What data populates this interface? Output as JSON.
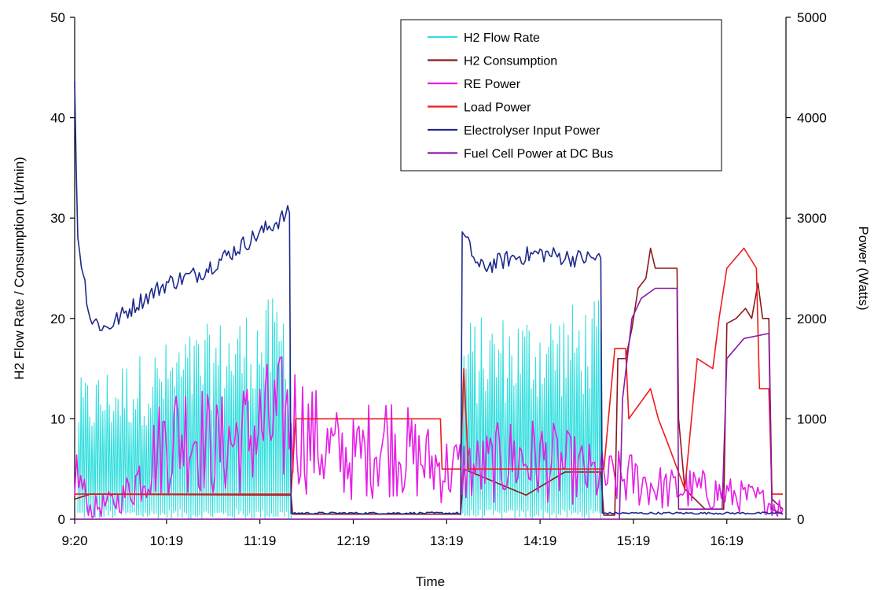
{
  "chart_data": {
    "type": "line",
    "title": "",
    "xlabel": "Time",
    "ylabel_left": "H2 Flow Rate / Consumption (Lit/min)",
    "ylabel_right": "Power (Watts)",
    "x_ticks": [
      "9:20",
      "10:19",
      "11:19",
      "12:19",
      "13:19",
      "14:19",
      "15:19",
      "16:19"
    ],
    "y_left_ticks": [
      "0",
      "10",
      "20",
      "30",
      "40",
      "50"
    ],
    "y_right_ticks": [
      "0",
      "1000",
      "2000",
      "3000",
      "4000",
      "5000"
    ],
    "y_left_range": [
      0,
      50
    ],
    "y_right_range": [
      0,
      5000
    ],
    "x_range_hours": [
      9.333,
      16.95
    ],
    "grid": false,
    "legend_position": "top-right",
    "series": [
      {
        "name": "H2 Flow Rate",
        "axis": "left",
        "color": "#33dede",
        "pattern": "oscillating",
        "segments": [
          {
            "start": "9:22",
            "end": "11:39",
            "low": 0,
            "high_start": 14,
            "high_end": 23
          },
          {
            "start": "13:28",
            "end": "14:58",
            "low": 0,
            "high_start": 20,
            "high_end": 22
          }
        ]
      },
      {
        "name": "H2 Consumption",
        "axis": "left",
        "color": "#8b1a1a",
        "points": [
          [
            "9:20",
            2
          ],
          [
            "9:30",
            2.5
          ],
          [
            "11:39",
            2.4
          ],
          [
            "11:40",
            0.5
          ],
          [
            "13:28",
            0.5
          ],
          [
            "13:30",
            5
          ],
          [
            "14:10",
            2.4
          ],
          [
            "14:35",
            4.7
          ],
          [
            "14:58",
            4.7
          ],
          [
            "15:00",
            0.4
          ],
          [
            "15:07",
            0.4
          ],
          [
            "15:09",
            16
          ],
          [
            "15:14",
            16
          ],
          [
            "15:18",
            19
          ],
          [
            "15:22",
            23
          ],
          [
            "15:27",
            24
          ],
          [
            "15:30",
            27
          ],
          [
            "15:33",
            25
          ],
          [
            "15:47",
            25
          ],
          [
            "15:48",
            10
          ],
          [
            "15:52",
            3
          ],
          [
            "16:05",
            1
          ],
          [
            "16:17",
            1
          ],
          [
            "16:19",
            19.5
          ],
          [
            "16:25",
            20
          ],
          [
            "16:31",
            21
          ],
          [
            "16:35",
            20
          ],
          [
            "16:39",
            23.5
          ],
          [
            "16:42",
            20
          ],
          [
            "16:46",
            20
          ],
          [
            "16:48",
            2
          ],
          [
            "16:55",
            1
          ]
        ]
      },
      {
        "name": "RE Power",
        "axis": "right",
        "color": "#e61ee6",
        "pattern": "noisy",
        "points": [
          [
            "9:20",
            500
          ],
          [
            "9:30",
            100
          ],
          [
            "9:50",
            200
          ],
          [
            "10:05",
            500
          ],
          [
            "10:19",
            800
          ],
          [
            "10:35",
            900
          ],
          [
            "10:50",
            700
          ],
          [
            "11:05",
            800
          ],
          [
            "11:19",
            900
          ],
          [
            "11:39",
            1000
          ],
          [
            "12:00",
            700
          ],
          [
            "12:19",
            600
          ],
          [
            "12:40",
            800
          ],
          [
            "13:00",
            600
          ],
          [
            "13:19",
            500
          ],
          [
            "13:40",
            500
          ],
          [
            "14:00",
            600
          ],
          [
            "14:19",
            600
          ],
          [
            "14:40",
            500
          ],
          [
            "15:00",
            400
          ],
          [
            "15:19",
            400
          ],
          [
            "15:40",
            300
          ],
          [
            "16:00",
            300
          ],
          [
            "16:19",
            250
          ],
          [
            "16:40",
            200
          ],
          [
            "16:55",
            100
          ]
        ]
      },
      {
        "name": "Load Power",
        "axis": "right",
        "color": "#ee1b1b",
        "points": [
          [
            "9:20",
            250
          ],
          [
            "11:39",
            250
          ],
          [
            "11:42",
            1000
          ],
          [
            "12:30",
            1000
          ],
          [
            "13:15",
            1000
          ],
          [
            "13:16",
            500
          ],
          [
            "13:28",
            500
          ],
          [
            "13:30",
            1500
          ],
          [
            "13:33",
            500
          ],
          [
            "14:35",
            500
          ],
          [
            "14:58",
            500
          ],
          [
            "15:00",
            500
          ],
          [
            "15:07",
            1700
          ],
          [
            "15:14",
            1700
          ],
          [
            "15:16",
            1000
          ],
          [
            "15:30",
            1300
          ],
          [
            "15:35",
            1000
          ],
          [
            "15:40",
            800
          ],
          [
            "15:52",
            300
          ],
          [
            "16:00",
            1600
          ],
          [
            "16:10",
            1500
          ],
          [
            "16:14",
            2000
          ],
          [
            "16:19",
            2500
          ],
          [
            "16:30",
            2700
          ],
          [
            "16:38",
            2500
          ],
          [
            "16:40",
            1300
          ],
          [
            "16:46",
            1300
          ],
          [
            "16:48",
            250
          ],
          [
            "16:55",
            250
          ]
        ]
      },
      {
        "name": "Electrolyser Input Power",
        "axis": "right",
        "color": "#1f2a8c",
        "pattern": "noisy",
        "points": [
          [
            "9:20",
            4300
          ],
          [
            "9:22",
            2800
          ],
          [
            "9:30",
            2000
          ],
          [
            "9:40",
            1900
          ],
          [
            "10:00",
            2150
          ],
          [
            "10:19",
            2350
          ],
          [
            "10:40",
            2450
          ],
          [
            "11:00",
            2650
          ],
          [
            "11:19",
            2850
          ],
          [
            "11:38",
            3050
          ],
          [
            "11:39",
            50
          ],
          [
            "13:28",
            50
          ],
          [
            "13:29",
            2850
          ],
          [
            "13:40",
            2500
          ],
          [
            "14:00",
            2600
          ],
          [
            "14:19",
            2650
          ],
          [
            "14:40",
            2600
          ],
          [
            "14:58",
            2600
          ],
          [
            "14:59",
            50
          ],
          [
            "16:55",
            50
          ]
        ]
      },
      {
        "name": "Fuel Cell Power at DC Bus",
        "axis": "right",
        "color": "#8b1aa6",
        "points": [
          [
            "9:20",
            0
          ],
          [
            "15:10",
            0
          ],
          [
            "15:12",
            1200
          ],
          [
            "15:18",
            2000
          ],
          [
            "15:24",
            2200
          ],
          [
            "15:33",
            2300
          ],
          [
            "15:47",
            2300
          ],
          [
            "15:48",
            100
          ],
          [
            "16:16",
            100
          ],
          [
            "16:19",
            1600
          ],
          [
            "16:30",
            1800
          ],
          [
            "16:46",
            1850
          ],
          [
            "16:48",
            100
          ],
          [
            "16:55",
            50
          ]
        ]
      }
    ]
  }
}
